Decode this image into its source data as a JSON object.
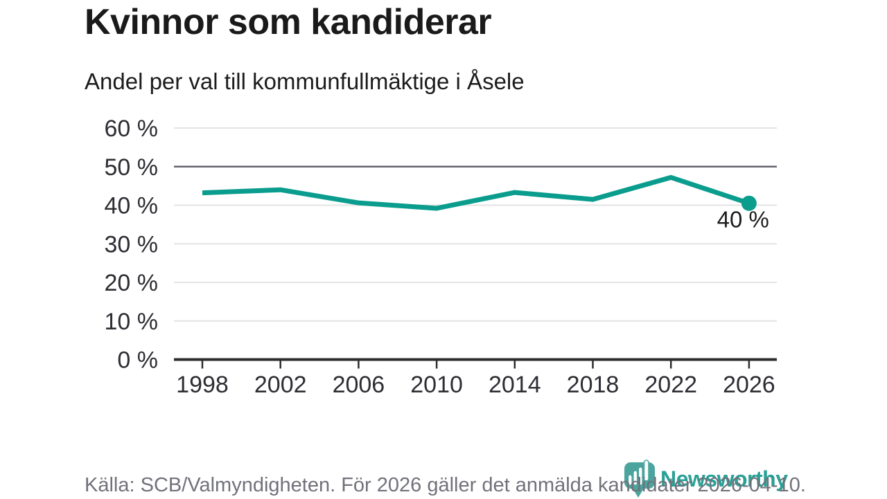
{
  "header": {
    "title": "Kvinnor som kandiderar",
    "subtitle": "Andel per val till kommunfullmäktige i Åsele"
  },
  "chart_data": {
    "type": "line",
    "title": "Kvinnor som kandiderar",
    "subtitle": "Andel per val till kommunfullmäktige i Åsele",
    "categories": [
      1998,
      2002,
      2006,
      2010,
      2014,
      2018,
      2022,
      2026
    ],
    "x_tick_labels": [
      "1998",
      "2002",
      "2006",
      "2010",
      "2014",
      "2018",
      "2022",
      "2026"
    ],
    "values": [
      43.2,
      44.0,
      40.6,
      39.2,
      43.3,
      41.5,
      47.2,
      40.5
    ],
    "unit": "%",
    "ylim": [
      0,
      60
    ],
    "y_ticks": [
      0,
      10,
      20,
      30,
      40,
      50,
      60
    ],
    "y_tick_labels": [
      "0 %",
      "10 %",
      "20 %",
      "30 %",
      "40 %",
      "50 %",
      "60 %"
    ],
    "grid": true,
    "reference_value": 50,
    "end_point_label": "40 %",
    "legend": "none"
  },
  "footer": {
    "source": "Källa: SCB/Valmyndigheten. För 2026 gäller det anmälda kandidater 2026-04-10."
  },
  "logo": {
    "text": "Newsworthy"
  },
  "colors": {
    "line": "#0a9d8e",
    "marker": "#0a9d8e",
    "grid": "#e3e3e3",
    "reference_line": "#62626c",
    "axis": "#2d2d2d",
    "tick_label": "#2d2d33",
    "text": "#1d1d1d",
    "muted_text": "#71717b",
    "logo_bubble": "#4ba49d",
    "logo_text": "#2aa096"
  }
}
